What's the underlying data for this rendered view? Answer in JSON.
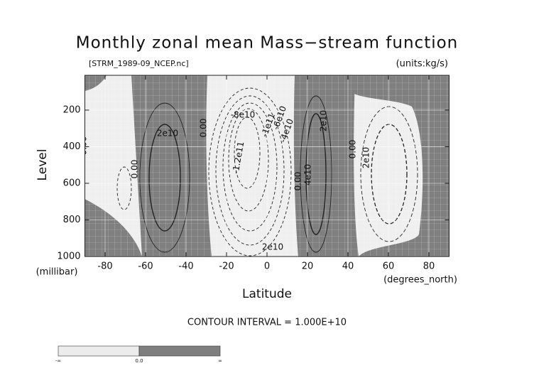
{
  "chart_data": {
    "type": "contour",
    "title": "Monthly zonal mean Mass−stream function",
    "subtitle": "[STRM_1989-09_NCEP.nc]",
    "units": "(units:kg/s)",
    "x_label": "Latitude",
    "x_unit": "(degrees_north)",
    "y_label": "Level",
    "y_unit": "(millibar)",
    "xlim": [
      -90,
      90
    ],
    "xticks": [
      -80,
      -60,
      -40,
      -20,
      0,
      20,
      40,
      60,
      80
    ],
    "ylim": [
      1000,
      10
    ],
    "yticks": [
      200,
      400,
      600,
      800,
      1000
    ],
    "grid": true,
    "contour_labels": [
      "0.00",
      "0.00",
      "2e10",
      "0.00",
      "-8e10",
      "-1.2e11",
      "-1e11",
      "-6e10",
      "-4e10",
      "2e10",
      "0.00",
      "4e10",
      "2e10",
      "0.00",
      "2e10"
    ],
    "footer": "CONTOUR INTERVAL = 1.000E+10",
    "colorbar": {
      "labels": [
        "-∞",
        "0.0",
        "∞"
      ],
      "colors": [
        "#ececec",
        "#7f7f7f"
      ]
    }
  }
}
